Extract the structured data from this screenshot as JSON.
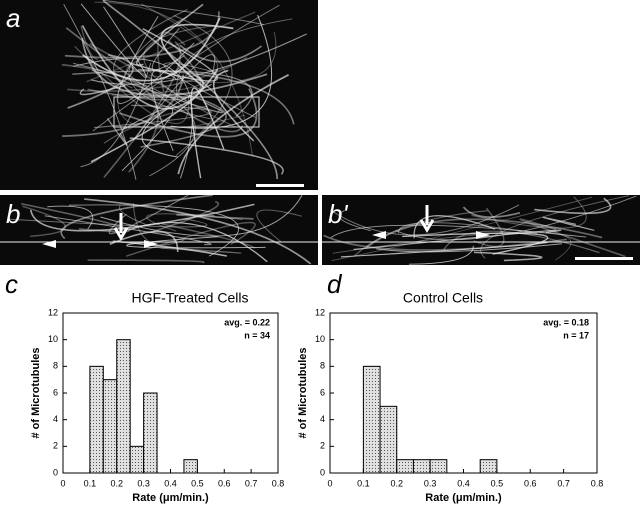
{
  "panel_labels": [
    "a",
    "b",
    "b'"
  ],
  "chart_data": [
    {
      "type": "histogram",
      "panel": "c",
      "title": "HGF-Treated Cells",
      "bins": [
        0.1,
        0.15,
        0.2,
        0.25,
        0.3,
        0.35,
        0.4,
        0.45,
        0.5
      ],
      "values": [
        8,
        7,
        10,
        2,
        6,
        0,
        0,
        1
      ],
      "color": "#c8c8c8",
      "xlim": [
        0,
        0.8
      ],
      "ylim": [
        0,
        12
      ],
      "xticks": [
        0,
        0.1,
        0.2,
        0.3,
        0.4,
        0.5,
        0.6,
        0.7,
        0.8
      ],
      "yticks": [
        0,
        2,
        4,
        6,
        8,
        10,
        12
      ],
      "xlabel": "Rate (μm/min.)",
      "ylabel": "# of Microtubules",
      "annotations": [
        "avg. = 0.22",
        "n = 34"
      ]
    },
    {
      "type": "histogram",
      "panel": "d",
      "title": "Control Cells",
      "bins": [
        0.1,
        0.15,
        0.2,
        0.25,
        0.3,
        0.35,
        0.4,
        0.45,
        0.5
      ],
      "values": [
        8,
        5,
        1,
        1,
        1,
        0,
        0,
        1
      ],
      "color": "#c8c8c8",
      "xlim": [
        0,
        0.8
      ],
      "ylim": [
        0,
        12
      ],
      "xticks": [
        0,
        0.1,
        0.2,
        0.3,
        0.4,
        0.5,
        0.6,
        0.7,
        0.8
      ],
      "yticks": [
        0,
        2,
        4,
        6,
        8,
        10,
        12
      ],
      "xlabel": "Rate (μm/min.)",
      "ylabel": "# of Microtubules",
      "annotations": [
        "avg. = 0.18",
        "n = 17"
      ]
    }
  ]
}
